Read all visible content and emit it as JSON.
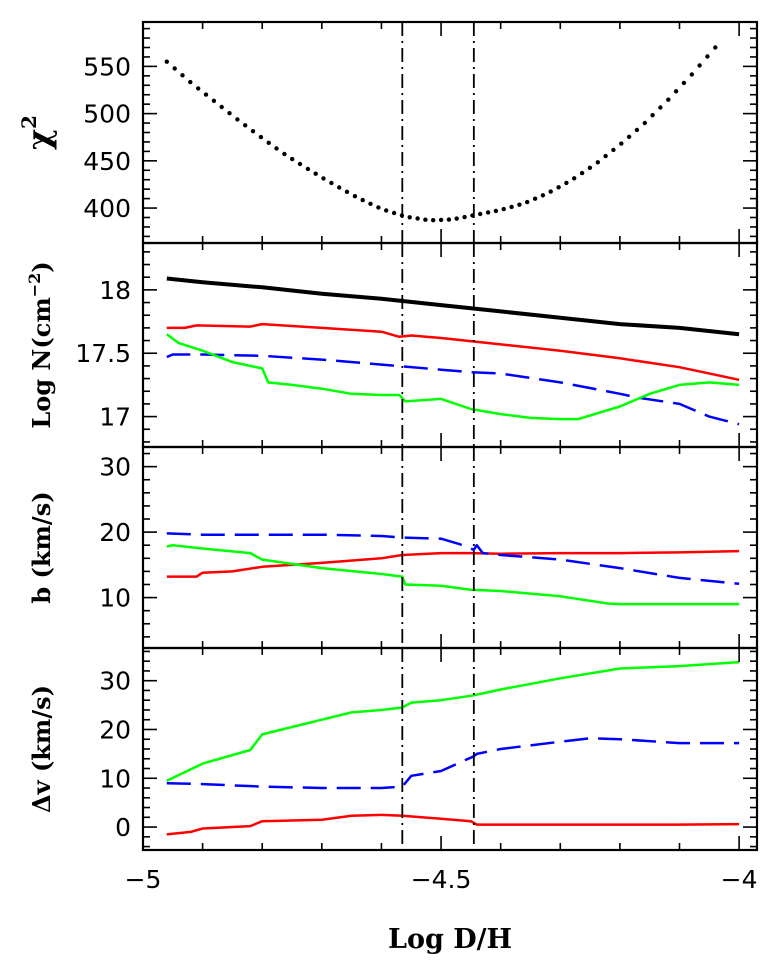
{
  "chart_data": {
    "type": "line",
    "xlabel": "Log D/H",
    "xlim": [
      -5.0,
      -3.97
    ],
    "xticks": [
      -5,
      -4.5,
      -4
    ],
    "xtick_labels": [
      "−5",
      "−4.5",
      "−4"
    ],
    "vlines": [
      -4.565,
      -4.445
    ],
    "colors": {
      "black": "#000000",
      "red": "#ff0000",
      "green": "#00ff00",
      "blue": "#0000ff"
    },
    "panels": [
      {
        "ylabel": "χ",
        "ylabel_sup": "2",
        "ylim": [
          363,
          597
        ],
        "yticks": [
          400,
          450,
          500,
          550
        ],
        "series": [
          {
            "color": "black",
            "style": "dotted",
            "x": [
              -4.96,
              -4.92,
              -4.88,
              -4.84,
              -4.8,
              -4.76,
              -4.72,
              -4.68,
              -4.64,
              -4.6,
              -4.56,
              -4.52,
              -4.48,
              -4.44,
              -4.4,
              -4.36,
              -4.32,
              -4.28,
              -4.24,
              -4.2,
              -4.16,
              -4.12,
              -4.08,
              -4.04
            ],
            "y": [
              555,
              533,
              513,
              493,
              474,
              456,
              440,
              425,
              411,
              399,
              391,
              387,
              388,
              393,
              398,
              405,
              416,
              430,
              447,
              467,
              489,
              514,
              541,
              570
            ]
          }
        ]
      },
      {
        "ylabel": "Log N(cm",
        "ylabel_sup": "−2",
        "ylabel_tail": ")",
        "ylim": [
          16.76,
          18.37
        ],
        "yticks": [
          17,
          17.5,
          18
        ],
        "ytick_labels": [
          "17",
          "17.5",
          "18"
        ],
        "series": [
          {
            "color": "black",
            "style": "solid",
            "width": 4,
            "x": [
              -4.96,
              -4.9,
              -4.8,
              -4.7,
              -4.6,
              -4.5,
              -4.4,
              -4.3,
              -4.2,
              -4.1,
              -4.0
            ],
            "y": [
              18.09,
              18.06,
              18.02,
              17.97,
              17.93,
              17.88,
              17.83,
              17.78,
              17.73,
              17.7,
              17.65
            ]
          },
          {
            "color": "red",
            "style": "solid",
            "width": 2.5,
            "x": [
              -4.96,
              -4.93,
              -4.91,
              -4.82,
              -4.8,
              -4.7,
              -4.6,
              -4.57,
              -4.55,
              -4.5,
              -4.4,
              -4.3,
              -4.2,
              -4.1,
              -4.0
            ],
            "y": [
              17.7,
              17.7,
              17.72,
              17.71,
              17.73,
              17.7,
              17.67,
              17.63,
              17.64,
              17.62,
              17.57,
              17.52,
              17.46,
              17.39,
              17.29
            ]
          },
          {
            "color": "blue",
            "style": "dashed",
            "width": 2.5,
            "x": [
              -4.96,
              -4.95,
              -4.9,
              -4.8,
              -4.7,
              -4.6,
              -4.5,
              -4.45,
              -4.4,
              -4.3,
              -4.2,
              -4.17,
              -4.1,
              -4.05,
              -4.0
            ],
            "y": [
              17.47,
              17.49,
              17.49,
              17.48,
              17.45,
              17.41,
              17.37,
              17.35,
              17.34,
              17.27,
              17.18,
              17.15,
              17.1,
              17.0,
              16.94
            ]
          },
          {
            "color": "green",
            "style": "solid",
            "width": 2.5,
            "x": [
              -4.96,
              -4.94,
              -4.9,
              -4.85,
              -4.8,
              -4.79,
              -4.75,
              -4.7,
              -4.65,
              -4.6,
              -4.57,
              -4.56,
              -4.5,
              -4.45,
              -4.4,
              -4.35,
              -4.3,
              -4.27,
              -4.2,
              -4.15,
              -4.1,
              -4.05,
              -4.0
            ],
            "y": [
              17.65,
              17.58,
              17.52,
              17.43,
              17.38,
              17.27,
              17.25,
              17.22,
              17.18,
              17.17,
              17.17,
              17.12,
              17.14,
              17.06,
              17.02,
              16.99,
              16.98,
              16.98,
              17.08,
              17.18,
              17.25,
              17.27,
              17.25
            ]
          }
        ]
      },
      {
        "ylabel": "b (km/s)",
        "ylim": [
          2.3,
          33.0
        ],
        "yticks": [
          10,
          20,
          30
        ],
        "series": [
          {
            "color": "red",
            "style": "solid",
            "width": 2.5,
            "x": [
              -4.96,
              -4.91,
              -4.9,
              -4.85,
              -4.8,
              -4.7,
              -4.6,
              -4.565,
              -4.5,
              -4.45,
              -4.4,
              -4.3,
              -4.2,
              -4.1,
              -4.0
            ],
            "y": [
              13.2,
              13.2,
              13.8,
              14.0,
              14.7,
              15.3,
              16.0,
              16.5,
              16.8,
              16.8,
              16.7,
              16.8,
              16.8,
              16.9,
              17.1
            ]
          },
          {
            "color": "blue",
            "style": "dashed",
            "width": 2.5,
            "x": [
              -4.96,
              -4.9,
              -4.8,
              -4.7,
              -4.6,
              -4.57,
              -4.5,
              -4.47,
              -4.445,
              -4.44,
              -4.43,
              -4.4,
              -4.3,
              -4.2,
              -4.1,
              -4.0
            ],
            "y": [
              19.8,
              19.6,
              19.6,
              19.6,
              19.4,
              19.2,
              19.0,
              18.2,
              17.3,
              18.0,
              16.8,
              16.5,
              15.8,
              14.5,
              13.0,
              12.1
            ]
          },
          {
            "color": "green",
            "style": "solid",
            "width": 2.5,
            "x": [
              -4.96,
              -4.95,
              -4.9,
              -4.82,
              -4.8,
              -4.7,
              -4.6,
              -4.565,
              -4.56,
              -4.5,
              -4.45,
              -4.4,
              -4.3,
              -4.22,
              -4.2,
              -4.1,
              -4.0
            ],
            "y": [
              17.8,
              18.0,
              17.5,
              16.8,
              15.8,
              14.5,
              13.6,
              13.2,
              12.0,
              11.8,
              11.2,
              11.0,
              10.2,
              9.1,
              9.0,
              9.0,
              9.0
            ]
          }
        ]
      },
      {
        "ylabel": "Δv (km/s)",
        "ylim": [
          -4.7,
          36.7
        ],
        "yticks": [
          0,
          10,
          20,
          30
        ],
        "series": [
          {
            "color": "green",
            "style": "solid",
            "width": 2.5,
            "x": [
              -4.96,
              -4.9,
              -4.82,
              -4.8,
              -4.75,
              -4.7,
              -4.65,
              -4.6,
              -4.565,
              -4.55,
              -4.5,
              -4.445,
              -4.4,
              -4.3,
              -4.2,
              -4.1,
              -4.0
            ],
            "y": [
              9.5,
              13.0,
              15.8,
              19.0,
              20.5,
              22.0,
              23.5,
              24.0,
              24.5,
              25.5,
              26.0,
              27.0,
              28.2,
              30.5,
              32.5,
              33.0,
              33.8
            ]
          },
          {
            "color": "blue",
            "style": "dashed",
            "width": 2.5,
            "x": [
              -4.96,
              -4.9,
              -4.8,
              -4.7,
              -4.6,
              -4.565,
              -4.55,
              -4.5,
              -4.445,
              -4.44,
              -4.4,
              -4.3,
              -4.25,
              -4.2,
              -4.1,
              -4.0
            ],
            "y": [
              9.0,
              8.8,
              8.3,
              8.0,
              8.0,
              8.3,
              10.5,
              11.5,
              14.5,
              15.0,
              16.0,
              17.5,
              18.2,
              18.0,
              17.2,
              17.2
            ]
          },
          {
            "color": "red",
            "style": "solid",
            "width": 2.5,
            "x": [
              -4.96,
              -4.92,
              -4.9,
              -4.82,
              -4.8,
              -4.7,
              -4.65,
              -4.6,
              -4.565,
              -4.5,
              -4.45,
              -4.44,
              -4.4,
              -4.3,
              -4.2,
              -4.1,
              -4.0
            ],
            "y": [
              -1.5,
              -1.0,
              -0.3,
              0.2,
              1.2,
              1.5,
              2.3,
              2.5,
              2.3,
              1.7,
              1.2,
              0.5,
              0.5,
              0.5,
              0.5,
              0.5,
              0.6
            ]
          }
        ]
      }
    ]
  }
}
